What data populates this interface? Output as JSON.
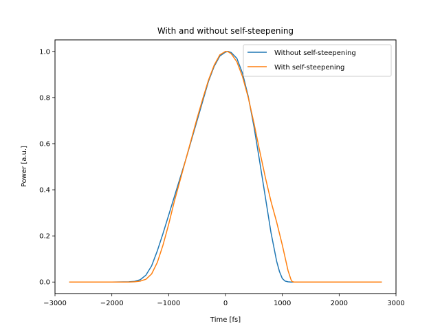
{
  "chart_data": {
    "type": "line",
    "title": "With and without self-steepening",
    "xlabel": "Time [fs]",
    "ylabel": "Power [a.u.]",
    "xlim": [
      -3000,
      3000
    ],
    "ylim": [
      -0.05,
      1.05
    ],
    "xticks": [
      -3000,
      -2000,
      -1000,
      0,
      1000,
      2000,
      3000
    ],
    "yticks": [
      0.0,
      0.2,
      0.4,
      0.6,
      0.8,
      1.0
    ],
    "xtick_labels": [
      "−3000",
      "−2000",
      "−1000",
      "0",
      "1000",
      "2000",
      "3000"
    ],
    "ytick_labels": [
      "0.0",
      "0.2",
      "0.4",
      "0.6",
      "0.8",
      "1.0"
    ],
    "grid": false,
    "legend_position": "top-right",
    "series": [
      {
        "name": "Without self-steepening",
        "color": "#1f77b4",
        "x": [
          -2750,
          -2000,
          -1700,
          -1600,
          -1500,
          -1400,
          -1300,
          -1200,
          -1100,
          -1000,
          -900,
          -800,
          -700,
          -600,
          -500,
          -400,
          -300,
          -200,
          -100,
          0,
          50,
          100,
          200,
          300,
          400,
          500,
          600,
          700,
          800,
          900,
          950,
          1000,
          1050,
          1100,
          1150,
          1200,
          1300,
          2000,
          2750
        ],
        "y": [
          0,
          0,
          0.001,
          0.003,
          0.01,
          0.03,
          0.07,
          0.135,
          0.21,
          0.29,
          0.37,
          0.45,
          0.53,
          0.615,
          0.7,
          0.785,
          0.87,
          0.935,
          0.98,
          0.997,
          1.0,
          0.995,
          0.97,
          0.905,
          0.805,
          0.675,
          0.525,
          0.37,
          0.215,
          0.09,
          0.045,
          0.015,
          0.004,
          0.001,
          0,
          0,
          0,
          0,
          0
        ]
      },
      {
        "name": "With self-steepening",
        "color": "#ff7f0e",
        "x": [
          -2750,
          -2000,
          -1700,
          -1600,
          -1500,
          -1400,
          -1300,
          -1200,
          -1100,
          -1000,
          -900,
          -800,
          -700,
          -600,
          -500,
          -400,
          -300,
          -200,
          -100,
          0,
          50,
          100,
          200,
          300,
          400,
          500,
          600,
          700,
          800,
          900,
          1000,
          1050,
          1100,
          1150,
          1170,
          1200,
          1300,
          2000,
          2750
        ],
        "y": [
          0,
          0,
          0,
          0.001,
          0.004,
          0.012,
          0.035,
          0.085,
          0.16,
          0.25,
          0.35,
          0.44,
          0.53,
          0.62,
          0.71,
          0.795,
          0.875,
          0.94,
          0.985,
          1.0,
          0.998,
          0.99,
          0.955,
          0.89,
          0.8,
          0.69,
          0.57,
          0.455,
          0.35,
          0.26,
          0.16,
          0.105,
          0.05,
          0.012,
          0.003,
          0,
          0,
          0,
          0
        ]
      }
    ]
  }
}
